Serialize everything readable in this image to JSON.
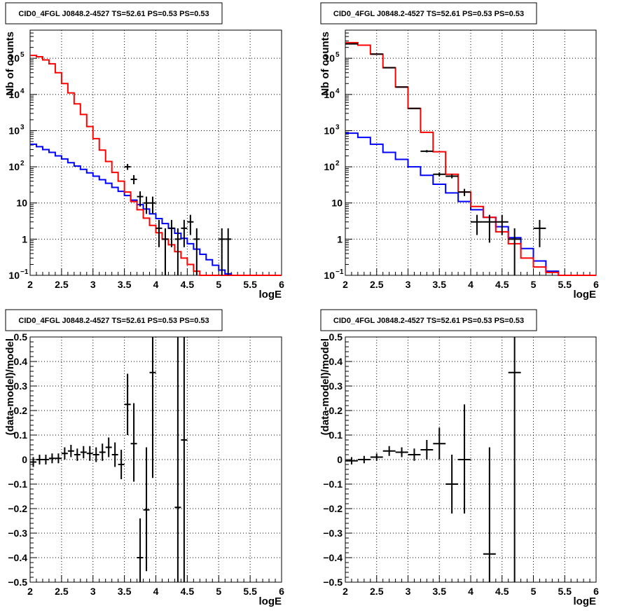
{
  "panels": [
    {
      "title": "CID0_4FGL J0848.2-4527 TS=52.61 PS=0.53 PS=0.53",
      "xlabel": "logE",
      "ylabel": "Nb of counts"
    },
    {
      "title": "CID0_4FGL J0848.2-4527 TS=52.61 PS=0.53 PS=0.53",
      "xlabel": "logE",
      "ylabel": "Nb of counts"
    },
    {
      "title": "CID0_4FGL J0848.2-4527 TS=52.61 PS=0.53 PS=0.53",
      "xlabel": "logE",
      "ylabel": "(data-model)/model"
    },
    {
      "title": "CID0_4FGL J0848.2-4527 TS=52.61 PS=0.53 PS=0.53",
      "xlabel": "logE",
      "ylabel": "(data-model)/model"
    }
  ],
  "colors": {
    "total_model": "#ff0000",
    "component": "#0000ff",
    "data": "#000000",
    "grid": "#000000"
  },
  "chart_data": [
    {
      "type": "histogram",
      "title": "CID0_4FGL J0848.2-4527 TS=52.61 PS=0.53 PS=0.53",
      "xlabel": "logE",
      "ylabel": "Nb of counts",
      "xlim": [
        2,
        6
      ],
      "ylim": [
        0.1,
        600000
      ],
      "log_y": true,
      "grid": true,
      "x_ticks": [
        "2",
        "2.5",
        "3",
        "3.5",
        "4",
        "4.5",
        "5",
        "5.5",
        "6"
      ],
      "y_ticks": [
        "10^-1",
        "1",
        "10",
        "10^2",
        "10^3",
        "10^4",
        "10^5"
      ],
      "bin_edges": [
        2.0,
        2.1,
        2.2,
        2.3,
        2.4,
        2.5,
        2.6,
        2.7,
        2.8,
        2.9,
        3.0,
        3.1,
        3.2,
        3.3,
        3.4,
        3.5,
        3.6,
        3.7,
        3.8,
        3.9,
        4.0,
        4.1,
        4.2,
        4.3,
        4.4,
        4.5,
        4.6,
        4.7,
        4.8,
        4.9,
        5.0,
        5.1,
        5.2,
        5.3,
        5.4,
        5.5,
        5.6,
        5.7,
        5.8,
        5.9,
        6.0
      ],
      "series": [
        {
          "role": "total_model",
          "values": [
            120000,
            110000,
            90000,
            70000,
            40000,
            20000,
            11000,
            5500,
            2800,
            1300,
            600,
            290,
            140,
            70,
            40,
            20,
            11,
            6.5,
            3.8,
            2.4,
            1.5,
            1.0,
            0.7,
            0.45,
            0.3,
            0.2,
            0.13,
            0.1,
            0.1,
            0.1,
            0.1,
            0.1,
            0.1,
            0.1,
            0.1,
            0.1,
            0.1,
            0.1,
            0.1,
            0.1
          ]
        },
        {
          "role": "component",
          "values": [
            420,
            360,
            300,
            250,
            200,
            165,
            130,
            105,
            85,
            68,
            55,
            44,
            35,
            27,
            21,
            16,
            12,
            9,
            6.8,
            5.0,
            3.7,
            2.7,
            2.0,
            1.45,
            1.05,
            0.75,
            0.53,
            0.38,
            0.27,
            0.19,
            0.14,
            0.11,
            0.1,
            0.1,
            0.1,
            0.1,
            0.1,
            0.1,
            0.1,
            0.1
          ]
        }
      ],
      "points": [
        {
          "x": 3.55,
          "xerr": 0.05,
          "y": 100,
          "ylo": 82,
          "yhi": 120
        },
        {
          "x": 3.65,
          "xerr": 0.05,
          "y": 45,
          "ylo": 33,
          "yhi": 59
        },
        {
          "x": 3.75,
          "xerr": 0.05,
          "y": 15,
          "ylo": 8,
          "yhi": 21
        },
        {
          "x": 3.85,
          "xerr": 0.05,
          "y": 10,
          "ylo": 5,
          "yhi": 15
        },
        {
          "x": 3.95,
          "xerr": 0.05,
          "y": 10,
          "ylo": 5,
          "yhi": 15
        },
        {
          "x": 4.05,
          "xerr": 0.05,
          "y": 2,
          "ylo": 0.6,
          "yhi": 3.4
        },
        {
          "x": 4.15,
          "xerr": 0.05,
          "y": 1,
          "ylo": 0.1,
          "yhi": 2
        },
        {
          "x": 4.25,
          "xerr": 0.05,
          "y": 2,
          "ylo": 0.6,
          "yhi": 3.4
        },
        {
          "x": 4.35,
          "xerr": 0.05,
          "y": 1,
          "ylo": 0.1,
          "yhi": 2
        },
        {
          "x": 4.45,
          "xerr": 0.05,
          "y": 2,
          "ylo": 0.6,
          "yhi": 3.4
        },
        {
          "x": 4.55,
          "xerr": 0.05,
          "y": 3,
          "ylo": 1.3,
          "yhi": 4.7
        },
        {
          "x": 4.65,
          "xerr": 0.05,
          "y": 1,
          "ylo": 0.1,
          "yhi": 2
        },
        {
          "x": 5.05,
          "xerr": 0.05,
          "y": 1,
          "ylo": 0.1,
          "yhi": 2
        },
        {
          "x": 5.15,
          "xerr": 0.05,
          "y": 1,
          "ylo": 0.1,
          "yhi": 2
        }
      ]
    },
    {
      "type": "histogram",
      "title": "CID0_4FGL J0848.2-4527 TS=52.61 PS=0.53 PS=0.53",
      "xlabel": "logE",
      "ylabel": "Nb of counts",
      "xlim": [
        2,
        6
      ],
      "ylim": [
        0.1,
        600000
      ],
      "log_y": true,
      "grid": true,
      "x_ticks": [
        "2",
        "2.5",
        "3",
        "3.5",
        "4",
        "4.5",
        "5",
        "5.5",
        "6"
      ],
      "y_ticks": [
        "10^-1",
        "1",
        "10",
        "10^2",
        "10^3",
        "10^4",
        "10^5"
      ],
      "bin_edges": [
        2.0,
        2.2,
        2.4,
        2.6,
        2.8,
        3.0,
        3.2,
        3.4,
        3.6,
        3.8,
        4.0,
        4.2,
        4.4,
        4.6,
        4.8,
        5.0,
        5.2,
        5.4,
        5.6,
        5.8,
        6.0
      ],
      "series": [
        {
          "role": "total_model",
          "values": [
            270000,
            230000,
            130000,
            55000,
            16000,
            4100,
            900,
            260,
            62,
            20,
            8,
            4,
            1.6,
            0.75,
            0.3,
            0.17,
            0.12,
            0.1,
            0.1,
            0.1
          ]
        },
        {
          "role": "component",
          "values": [
            850,
            650,
            420,
            250,
            160,
            100,
            58,
            33,
            19,
            11,
            6.5,
            4,
            2.2,
            1.1,
            0.55,
            0.25,
            0.13,
            0.1,
            0.1,
            0.1
          ]
        }
      ],
      "points": [
        {
          "x": 2.1,
          "xerr": 0.1,
          "y": 250000,
          "ylo": 248000,
          "yhi": 252000
        },
        {
          "x": 2.5,
          "xerr": 0.1,
          "y": 130000,
          "ylo": 129000,
          "yhi": 131000
        },
        {
          "x": 2.7,
          "xerr": 0.1,
          "y": 55000,
          "ylo": 54500,
          "yhi": 55500
        },
        {
          "x": 2.9,
          "xerr": 0.1,
          "y": 16000,
          "ylo": 15800,
          "yhi": 16200
        },
        {
          "x": 3.1,
          "xerr": 0.1,
          "y": 4100,
          "ylo": 4000,
          "yhi": 4200
        },
        {
          "x": 3.3,
          "xerr": 0.1,
          "y": 270,
          "ylo": 250,
          "yhi": 290
        },
        {
          "x": 3.5,
          "xerr": 0.1,
          "y": 62,
          "ylo": 54,
          "yhi": 70
        },
        {
          "x": 3.7,
          "xerr": 0.1,
          "y": 55,
          "ylo": 48,
          "yhi": 63
        },
        {
          "x": 3.9,
          "xerr": 0.1,
          "y": 20,
          "ylo": 15.5,
          "yhi": 24.5
        },
        {
          "x": 4.1,
          "xerr": 0.1,
          "y": 3,
          "ylo": 1.3,
          "yhi": 4.7
        },
        {
          "x": 4.3,
          "xerr": 0.1,
          "y": 3,
          "ylo": 0.8,
          "yhi": 4.7
        },
        {
          "x": 4.5,
          "xerr": 0.1,
          "y": 3,
          "ylo": 1.3,
          "yhi": 4.7
        },
        {
          "x": 4.7,
          "xerr": 0.1,
          "y": 1,
          "ylo": 0.1,
          "yhi": 2
        },
        {
          "x": 5.1,
          "xerr": 0.1,
          "y": 2,
          "ylo": 0.6,
          "yhi": 3.4
        }
      ]
    },
    {
      "type": "scatter",
      "title": "CID0_4FGL J0848.2-4527 TS=52.61 PS=0.53 PS=0.53",
      "xlabel": "logE",
      "ylabel": "(data-model)/model",
      "xlim": [
        2,
        6
      ],
      "ylim": [
        -0.5,
        0.5
      ],
      "grid": true,
      "x_ticks": [
        "2",
        "2.5",
        "3",
        "3.5",
        "4",
        "4.5",
        "5",
        "5.5",
        "6"
      ],
      "y_ticks": [
        "-0.5",
        "-0.4",
        "-0.3",
        "-0.2",
        "-0.1",
        "0",
        "0.1",
        "0.2",
        "0.3",
        "0.4",
        "0.5"
      ],
      "points": [
        {
          "x": 2.05,
          "xerr": 0.05,
          "y": -0.01,
          "ylo": -0.03,
          "yhi": 0.01
        },
        {
          "x": 2.15,
          "xerr": 0.05,
          "y": 0.0,
          "ylo": -0.02,
          "yhi": 0.02
        },
        {
          "x": 2.25,
          "xerr": 0.05,
          "y": 0.0,
          "ylo": -0.02,
          "yhi": 0.02
        },
        {
          "x": 2.35,
          "xerr": 0.05,
          "y": 0.005,
          "ylo": -0.015,
          "yhi": 0.025
        },
        {
          "x": 2.45,
          "xerr": 0.05,
          "y": 0.005,
          "ylo": -0.015,
          "yhi": 0.025
        },
        {
          "x": 2.55,
          "xerr": 0.05,
          "y": 0.025,
          "ylo": 0.0,
          "yhi": 0.05
        },
        {
          "x": 2.65,
          "xerr": 0.05,
          "y": 0.035,
          "ylo": 0.01,
          "yhi": 0.06
        },
        {
          "x": 2.75,
          "xerr": 0.05,
          "y": 0.02,
          "ylo": -0.005,
          "yhi": 0.045
        },
        {
          "x": 2.85,
          "xerr": 0.05,
          "y": 0.03,
          "ylo": 0.005,
          "yhi": 0.055
        },
        {
          "x": 2.95,
          "xerr": 0.05,
          "y": 0.025,
          "ylo": -0.005,
          "yhi": 0.055
        },
        {
          "x": 3.05,
          "xerr": 0.05,
          "y": 0.02,
          "ylo": -0.01,
          "yhi": 0.05
        },
        {
          "x": 3.15,
          "xerr": 0.05,
          "y": 0.03,
          "ylo": -0.005,
          "yhi": 0.065
        },
        {
          "x": 3.25,
          "xerr": 0.05,
          "y": 0.05,
          "ylo": 0.01,
          "yhi": 0.09
        },
        {
          "x": 3.35,
          "xerr": 0.05,
          "y": 0.02,
          "ylo": -0.03,
          "yhi": 0.07
        },
        {
          "x": 3.45,
          "xerr": 0.05,
          "y": -0.02,
          "ylo": -0.08,
          "yhi": 0.04
        },
        {
          "x": 3.55,
          "xerr": 0.05,
          "y": 0.225,
          "ylo": 0.1,
          "yhi": 0.35
        },
        {
          "x": 3.65,
          "xerr": 0.05,
          "y": 0.065,
          "ylo": -0.09,
          "yhi": 0.23
        },
        {
          "x": 3.75,
          "xerr": 0.05,
          "y": -0.4,
          "ylo": -0.5,
          "yhi": -0.24
        },
        {
          "x": 3.85,
          "xerr": 0.05,
          "y": -0.205,
          "ylo": -0.455,
          "yhi": 0.05
        },
        {
          "x": 3.95,
          "xerr": 0.05,
          "y": 0.355,
          "ylo": -0.075,
          "yhi": 0.5
        },
        {
          "x": 4.35,
          "xerr": 0.05,
          "y": -0.195,
          "ylo": -0.5,
          "yhi": 0.5
        },
        {
          "x": 4.45,
          "xerr": 0.05,
          "y": 0.08,
          "ylo": -0.5,
          "yhi": 0.5
        }
      ]
    },
    {
      "type": "scatter",
      "title": "CID0_4FGL J0848.2-4527 TS=52.61 PS=0.53 PS=0.53",
      "xlabel": "logE",
      "ylabel": "(data-model)/model",
      "xlim": [
        2,
        6
      ],
      "ylim": [
        -0.5,
        0.5
      ],
      "grid": true,
      "x_ticks": [
        "2",
        "2.5",
        "3",
        "3.5",
        "4",
        "4.5",
        "5",
        "5.5",
        "6"
      ],
      "y_ticks": [
        "-0.5",
        "-0.4",
        "-0.3",
        "-0.2",
        "-0.1",
        "0",
        "0.1",
        "0.2",
        "0.3",
        "0.4",
        "0.5"
      ],
      "points": [
        {
          "x": 2.1,
          "xerr": 0.1,
          "y": -0.005,
          "ylo": -0.02,
          "yhi": 0.01
        },
        {
          "x": 2.3,
          "xerr": 0.1,
          "y": 0.0,
          "ylo": -0.015,
          "yhi": 0.015
        },
        {
          "x": 2.5,
          "xerr": 0.1,
          "y": 0.01,
          "ylo": -0.005,
          "yhi": 0.025
        },
        {
          "x": 2.7,
          "xerr": 0.1,
          "y": 0.035,
          "ylo": 0.015,
          "yhi": 0.055
        },
        {
          "x": 2.9,
          "xerr": 0.1,
          "y": 0.03,
          "ylo": 0.01,
          "yhi": 0.05
        },
        {
          "x": 3.1,
          "xerr": 0.1,
          "y": 0.02,
          "ylo": -0.005,
          "yhi": 0.045
        },
        {
          "x": 3.3,
          "xerr": 0.1,
          "y": 0.04,
          "ylo": 0.0,
          "yhi": 0.08
        },
        {
          "x": 3.5,
          "xerr": 0.1,
          "y": 0.065,
          "ylo": 0.0,
          "yhi": 0.13
        },
        {
          "x": 3.7,
          "xerr": 0.1,
          "y": -0.1,
          "ylo": -0.22,
          "yhi": 0.02
        },
        {
          "x": 3.9,
          "xerr": 0.1,
          "y": 0.0,
          "ylo": -0.22,
          "yhi": 0.225
        },
        {
          "x": 4.3,
          "xerr": 0.1,
          "y": -0.385,
          "ylo": -0.5,
          "yhi": 0.05
        },
        {
          "x": 4.7,
          "xerr": 0.1,
          "y": 0.355,
          "ylo": -0.5,
          "yhi": 0.5
        }
      ]
    }
  ]
}
